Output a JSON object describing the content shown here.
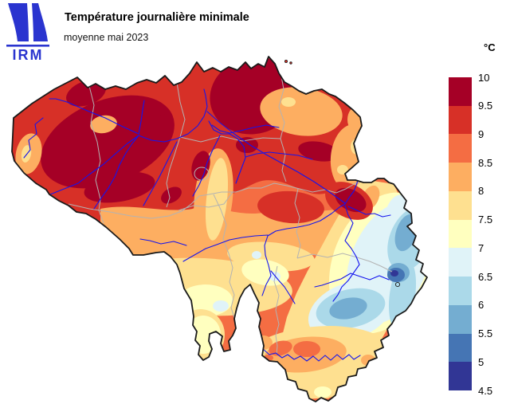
{
  "brand": {
    "logo_text": "IRM",
    "color": "#2a34cf"
  },
  "header": {
    "title": "Température journalière minimale",
    "subtitle": "moyenne mai 2023"
  },
  "legend": {
    "unit": "°C",
    "boundaries": [
      "10",
      "9.5",
      "9",
      "8.5",
      "8",
      "7.5",
      "7",
      "6.5",
      "6",
      "5.5",
      "5",
      "4.5"
    ],
    "colors": [
      "#a50026",
      "#d73027",
      "#f46d43",
      "#fdae61",
      "#fee090",
      "#ffffbf",
      "#e0f3f8",
      "#abd9e9",
      "#74add1",
      "#4575b4",
      "#313695"
    ]
  },
  "map": {
    "country": "Belgique",
    "border_color": "#1a1a1a",
    "province_border_color": "#b3b3b3",
    "river_color": "#1414ee",
    "base_color": "#f46d43"
  }
}
